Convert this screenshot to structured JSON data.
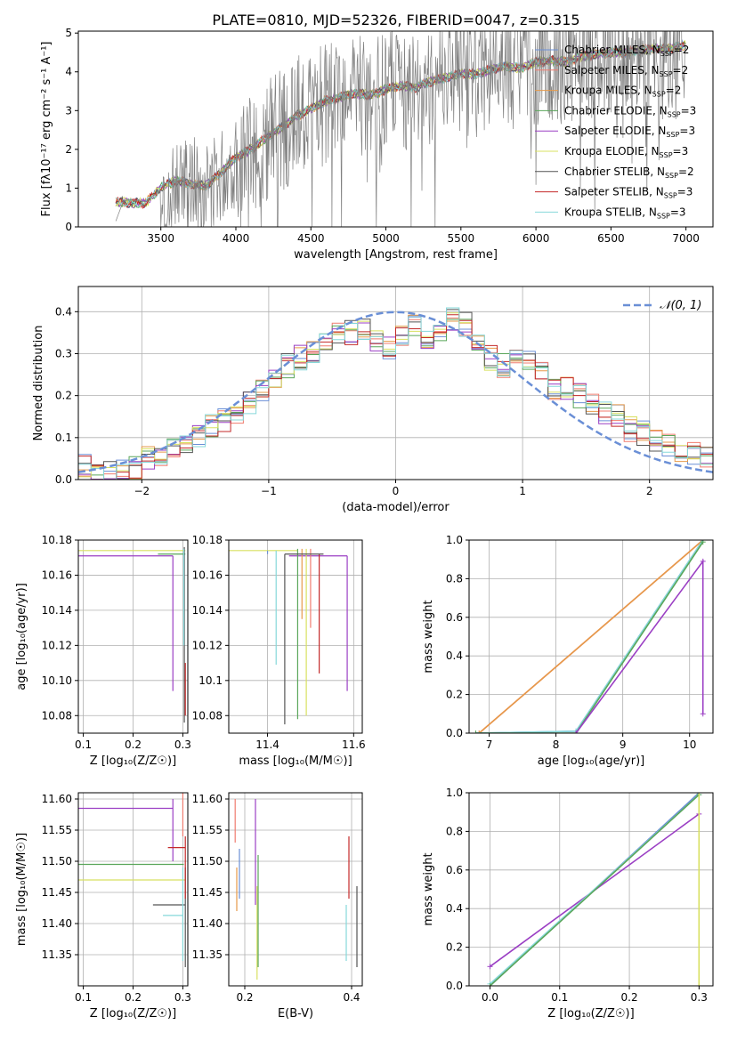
{
  "figure_title": "PLATE=0810, MJD=52326, FIBERID=0047, z=0.315",
  "colors": {
    "Chabrier MILES": "#6b8fd6",
    "Salpeter MILES": "#f07c6f",
    "Kroupa MILES": "#e69a4a",
    "Chabrier ELODIE": "#5aa65a",
    "Salpeter ELODIE": "#9b3fc4",
    "Kroupa ELODIE": "#d8e060",
    "Chabrier STELIB": "#555555",
    "Salpeter STELIB": "#c42a2a",
    "Kroupa STELIB": "#86d8da",
    "data": "#808080",
    "normal": "#6a8fd6"
  },
  "chart_data": [
    {
      "type": "line",
      "title": "PLATE=0810, MJD=52326, FIBERID=0047, z=0.315",
      "xlabel": "wavelength [Angstrom, rest frame]",
      "ylabel": "Flux [fλ10⁻¹⁷ erg cm⁻² s⁻¹ A⁻¹]",
      "xlim": [
        2950,
        7180
      ],
      "ylim": [
        0,
        5.05
      ],
      "xticks": [
        3500,
        4000,
        4500,
        5000,
        5500,
        6000,
        6500,
        7000
      ],
      "yticks": [
        0,
        1,
        2,
        3,
        4,
        5
      ],
      "legend_position": "right",
      "legend": [
        {
          "name": "Chabrier MILES",
          "nssp": "2"
        },
        {
          "name": "Salpeter MILES",
          "nssp": "2"
        },
        {
          "name": "Kroupa MILES",
          "nssp": "2"
        },
        {
          "name": "Chabrier ELODIE",
          "nssp": "3"
        },
        {
          "name": "Salpeter ELODIE",
          "nssp": "3"
        },
        {
          "name": "Kroupa ELODIE",
          "nssp": "3"
        },
        {
          "name": "Chabrier STELIB",
          "nssp": "2"
        },
        {
          "name": "Salpeter STELIB",
          "nssp": "3"
        },
        {
          "name": "Kroupa STELIB",
          "nssp": "3"
        }
      ],
      "data_series": {
        "x": [
          3200,
          3250,
          3300,
          3400,
          3500,
          3600,
          3700,
          3800,
          3900,
          4000,
          4100,
          4200,
          4300,
          4400,
          4500,
          4600,
          4700,
          4800,
          4900,
          5000,
          5100,
          5200,
          5300,
          5400,
          5500,
          5600,
          5700,
          5800,
          5900,
          6000,
          6100,
          6200,
          6300,
          6400,
          6500,
          6600,
          6700,
          6800,
          6900,
          7000
        ],
        "y": [
          0.1,
          0.62,
          0.65,
          0.6,
          0.9,
          1.1,
          1.15,
          1.0,
          1.3,
          1.6,
          1.9,
          2.2,
          2.5,
          2.8,
          3.0,
          3.2,
          3.3,
          3.4,
          3.3,
          3.5,
          3.6,
          3.5,
          3.7,
          3.8,
          3.9,
          3.9,
          4.0,
          4.1,
          4.0,
          4.2,
          4.3,
          4.2,
          4.4,
          4.4,
          4.5,
          4.5,
          4.5,
          4.6,
          4.6,
          4.7
        ]
      },
      "model_series": {
        "x": [
          3200,
          3250,
          3300,
          3400,
          3500,
          3600,
          3700,
          3800,
          3900,
          4000,
          4100,
          4200,
          4300,
          4400,
          4500,
          4600,
          4700,
          4800,
          4900,
          5000,
          5100,
          5200,
          5300,
          5400,
          5500,
          5600,
          5700,
          5800,
          5900,
          6000,
          6100,
          6200,
          6300,
          6400,
          6500,
          6600,
          6700,
          6800,
          6900,
          7000
        ],
        "y": [
          0.62,
          0.65,
          0.6,
          0.62,
          1.0,
          1.2,
          1.1,
          1.05,
          1.4,
          1.8,
          2.0,
          2.3,
          2.55,
          2.85,
          3.05,
          3.25,
          3.35,
          3.45,
          3.4,
          3.55,
          3.65,
          3.6,
          3.75,
          3.85,
          3.95,
          3.95,
          4.05,
          4.15,
          4.1,
          4.25,
          4.3,
          4.25,
          4.4,
          4.45,
          4.5,
          4.5,
          4.55,
          4.6,
          4.6,
          4.7
        ]
      }
    },
    {
      "type": "line",
      "xlabel": "(data-model)/error",
      "ylabel": "Normed distribution",
      "xlim": [
        -2.5,
        2.5
      ],
      "ylim": [
        0,
        0.46
      ],
      "xticks": [
        -2,
        -1,
        0,
        1,
        2
      ],
      "yticks": [
        0.0,
        0.1,
        0.2,
        0.3,
        0.4
      ],
      "legend_position": "top-right",
      "legend_label": "𝒩(0, 1)",
      "hist_bins": [
        -2.5,
        -2.4,
        -2.3,
        -2.2,
        -2.1,
        -2.0,
        -1.9,
        -1.8,
        -1.7,
        -1.6,
        -1.5,
        -1.4,
        -1.3,
        -1.2,
        -1.1,
        -1.0,
        -0.9,
        -0.8,
        -0.7,
        -0.6,
        -0.5,
        -0.4,
        -0.3,
        -0.2,
        -0.1,
        0.0,
        0.1,
        0.2,
        0.3,
        0.4,
        0.5,
        0.6,
        0.7,
        0.8,
        0.9,
        1.0,
        1.1,
        1.2,
        1.3,
        1.4,
        1.5,
        1.6,
        1.7,
        1.8,
        1.9,
        2.0,
        2.1,
        2.2,
        2.3,
        2.4,
        2.5
      ],
      "hist_base": [
        0.03,
        0.01,
        0.02,
        0.02,
        0.03,
        0.05,
        0.06,
        0.07,
        0.09,
        0.1,
        0.13,
        0.14,
        0.16,
        0.18,
        0.21,
        0.24,
        0.27,
        0.29,
        0.3,
        0.33,
        0.35,
        0.35,
        0.36,
        0.33,
        0.31,
        0.34,
        0.37,
        0.33,
        0.36,
        0.38,
        0.37,
        0.33,
        0.29,
        0.27,
        0.28,
        0.28,
        0.26,
        0.21,
        0.22,
        0.2,
        0.18,
        0.16,
        0.15,
        0.12,
        0.11,
        0.09,
        0.08,
        0.07,
        0.06,
        0.05
      ]
    },
    {
      "type": "scatter",
      "xlabel": "Z [log₁₀(Z/Z☉)]",
      "ylabel": "age  [log₁₀(age/yr)]",
      "xlim": [
        0.09,
        0.31
      ],
      "ylim": [
        10.07,
        10.18
      ],
      "xticks": [
        0.1,
        0.2,
        0.3
      ],
      "yticks": [
        10.08,
        10.1,
        10.12,
        10.14,
        10.16,
        10.18
      ]
    },
    {
      "type": "scatter",
      "xlabel": "mass [log₁₀(M/M☉)]",
      "ylabel": "",
      "xlim": [
        11.31,
        11.62
      ],
      "ylim": [
        10.07,
        10.18
      ],
      "xticks": [
        11.4,
        11.6
      ],
      "yticks": [
        10.08,
        10.1,
        10.12,
        10.14,
        10.16,
        10.18
      ]
    },
    {
      "type": "line",
      "xlabel": "age  [log₁₀(age/yr)]",
      "ylabel": "mass weight",
      "xlim": [
        6.7,
        10.35
      ],
      "ylim": [
        0,
        1
      ],
      "xticks": [
        7,
        8,
        9,
        10
      ],
      "yticks": [
        0.0,
        0.2,
        0.4,
        0.6,
        0.8,
        1.0
      ],
      "series": [
        {
          "color": "Salpeter MILES",
          "x": [
            6.85,
            10.2
          ],
          "y": [
            0.0,
            1.0
          ]
        },
        {
          "color": "Kroupa MILES",
          "x": [
            6.85,
            10.2
          ],
          "y": [
            0.0,
            1.0
          ]
        },
        {
          "color": "Chabrier MILES",
          "x": [
            6.8,
            8.3,
            10.2
          ],
          "y": [
            0.0,
            0.01,
            1.0
          ]
        },
        {
          "color": "Kroupa STELIB",
          "x": [
            6.8,
            8.3,
            10.2
          ],
          "y": [
            0.0,
            0.01,
            1.0
          ]
        },
        {
          "color": "Chabrier ELODIE",
          "x": [
            6.8,
            8.3,
            10.2
          ],
          "y": [
            0.0,
            0.0,
            0.99
          ]
        },
        {
          "color": "Salpeter ELODIE",
          "x": [
            8.3,
            10.2,
            10.2
          ],
          "y": [
            0.0,
            0.89,
            0.1
          ]
        }
      ]
    },
    {
      "type": "scatter",
      "xlabel": "Z [log₁₀(Z/Z☉)]",
      "ylabel": "mass [log₁₀(M/M☉)]",
      "xlim": [
        0.09,
        0.31
      ],
      "ylim": [
        11.3,
        11.61
      ],
      "xticks": [
        0.1,
        0.2,
        0.3
      ],
      "yticks": [
        11.35,
        11.4,
        11.45,
        11.5,
        11.55,
        11.6
      ]
    },
    {
      "type": "scatter",
      "xlabel": "E(B-V)",
      "ylabel": "",
      "xlim": [
        0.17,
        0.42
      ],
      "ylim": [
        11.3,
        11.61
      ],
      "xticks": [
        0.2,
        0.4
      ],
      "yticks": [
        11.35,
        11.4,
        11.45,
        11.5,
        11.55,
        11.6
      ]
    },
    {
      "type": "line",
      "xlabel": "Z [log₁₀(Z/Z☉)]",
      "ylabel": "mass weight",
      "xlim": [
        -0.03,
        0.32
      ],
      "ylim": [
        0,
        1
      ],
      "xticks": [
        0.0,
        0.1,
        0.2,
        0.3
      ],
      "yticks": [
        0.0,
        0.2,
        0.4,
        0.6,
        0.8,
        1.0
      ],
      "series": [
        {
          "color": "Salpeter ELODIE",
          "x": [
            0.0,
            0.3
          ],
          "y": [
            0.1,
            0.89
          ]
        },
        {
          "color": "Chabrier MILES",
          "x": [
            0.0,
            0.3
          ],
          "y": [
            0.0,
            1.0
          ]
        },
        {
          "color": "Kroupa STELIB",
          "x": [
            0.0,
            0.3
          ],
          "y": [
            0.01,
            0.99
          ]
        },
        {
          "color": "Chabrier ELODIE",
          "x": [
            0.0,
            0.3
          ],
          "y": [
            0.0,
            0.99
          ]
        },
        {
          "color": "Kroupa ELODIE",
          "x": [
            0.3,
            0.3
          ],
          "y": [
            0.0,
            1.0
          ]
        }
      ]
    }
  ]
}
